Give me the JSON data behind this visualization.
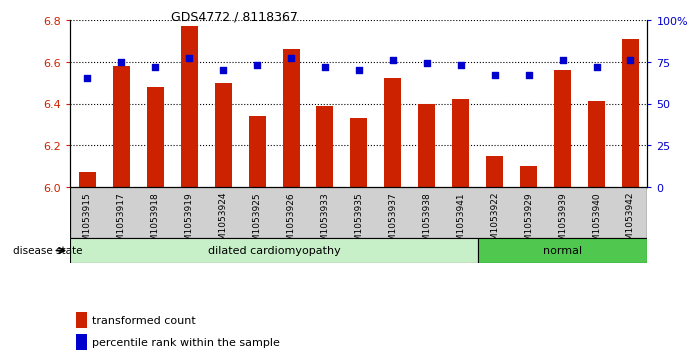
{
  "title": "GDS4772 / 8118367",
  "samples": [
    "GSM1053915",
    "GSM1053917",
    "GSM1053918",
    "GSM1053919",
    "GSM1053924",
    "GSM1053925",
    "GSM1053926",
    "GSM1053933",
    "GSM1053935",
    "GSM1053937",
    "GSM1053938",
    "GSM1053941",
    "GSM1053922",
    "GSM1053929",
    "GSM1053939",
    "GSM1053940",
    "GSM1053942"
  ],
  "bar_values": [
    6.07,
    6.58,
    6.48,
    6.77,
    6.5,
    6.34,
    6.66,
    6.39,
    6.33,
    6.52,
    6.4,
    6.42,
    6.15,
    6.1,
    6.56,
    6.41,
    6.71
  ],
  "dot_values": [
    65,
    75,
    72,
    77,
    70,
    73,
    77,
    72,
    70,
    76,
    74,
    73,
    67,
    67,
    76,
    72,
    76
  ],
  "disease_groups": [
    {
      "label": "dilated cardiomyopathy",
      "start": 0,
      "end": 12,
      "color": "#c8f0c8"
    },
    {
      "label": "normal",
      "start": 12,
      "end": 17,
      "color": "#50c850"
    }
  ],
  "ylim_left": [
    6.0,
    6.8
  ],
  "ylim_right": [
    0,
    100
  ],
  "bar_color": "#cc2200",
  "dot_color": "#0000cc",
  "grid_color": "#000000",
  "ylabel_left_color": "#cc2200",
  "ylabel_right_color": "#0000cc",
  "left_ticks": [
    6.0,
    6.2,
    6.4,
    6.6,
    6.8
  ],
  "right_ticks": [
    0,
    25,
    50,
    75,
    100
  ],
  "right_tick_labels": [
    "0",
    "25",
    "50",
    "75",
    "100%"
  ],
  "xtick_bg_color": "#d0d0d0",
  "legend_items": [
    {
      "label": "transformed count",
      "color": "#cc2200"
    },
    {
      "label": "percentile rank within the sample",
      "color": "#0000cc"
    }
  ]
}
